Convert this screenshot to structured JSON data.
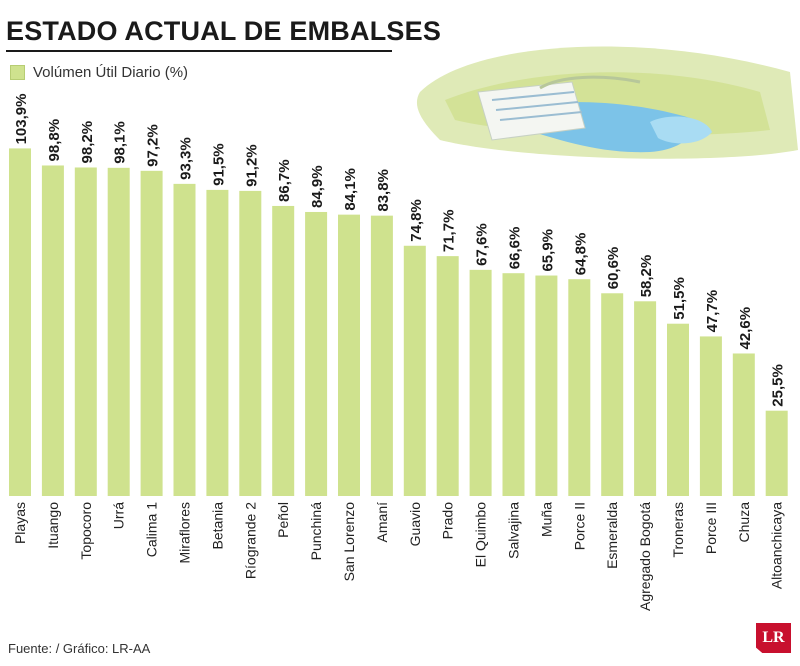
{
  "chart_data": {
    "type": "bar",
    "title": "ESTADO ACTUAL DE EMBALSES",
    "legend": "Volúmen Útil Diario (%)",
    "xlabel": "",
    "ylabel": "",
    "ylim": [
      0,
      110
    ],
    "categories": [
      "Playas",
      "Ituango",
      "Topocoro",
      "Urrá",
      "Calima 1",
      "Miraflores",
      "Betania",
      "Ríogrande 2",
      "Peñol",
      "Punchiná",
      "San Lorenzo",
      "Amaní",
      "Guavio",
      "Prado",
      "El Quimbo",
      "Salvajina",
      "Muña",
      "Porce II",
      "Esmeralda",
      "Agregado Bogotá",
      "Troneras",
      "Porce III",
      "Chuza",
      "Altoanchicaya"
    ],
    "values": [
      103.9,
      98.8,
      98.2,
      98.1,
      97.2,
      93.3,
      91.5,
      91.2,
      86.7,
      84.9,
      84.1,
      83.8,
      74.8,
      71.7,
      67.6,
      66.6,
      65.9,
      64.8,
      60.6,
      58.2,
      51.5,
      47.7,
      42.6,
      25.5
    ],
    "labels": [
      "103,9%",
      "98,8%",
      "98,2%",
      "98,1%",
      "97,2%",
      "93,3%",
      "91,5%",
      "91,2%",
      "86,7%",
      "84,9%",
      "84,1%",
      "83,8%",
      "74,8%",
      "71,7%",
      "67,6%",
      "66,6%",
      "65,9%",
      "64,8%",
      "60,6%",
      "58,2%",
      "51,5%",
      "47,7%",
      "42,6%",
      "25,5%"
    ],
    "bar_color": "#cfe28e"
  },
  "footer": "Fuente:  / Gráfico: LR-AA",
  "logo": "LR"
}
